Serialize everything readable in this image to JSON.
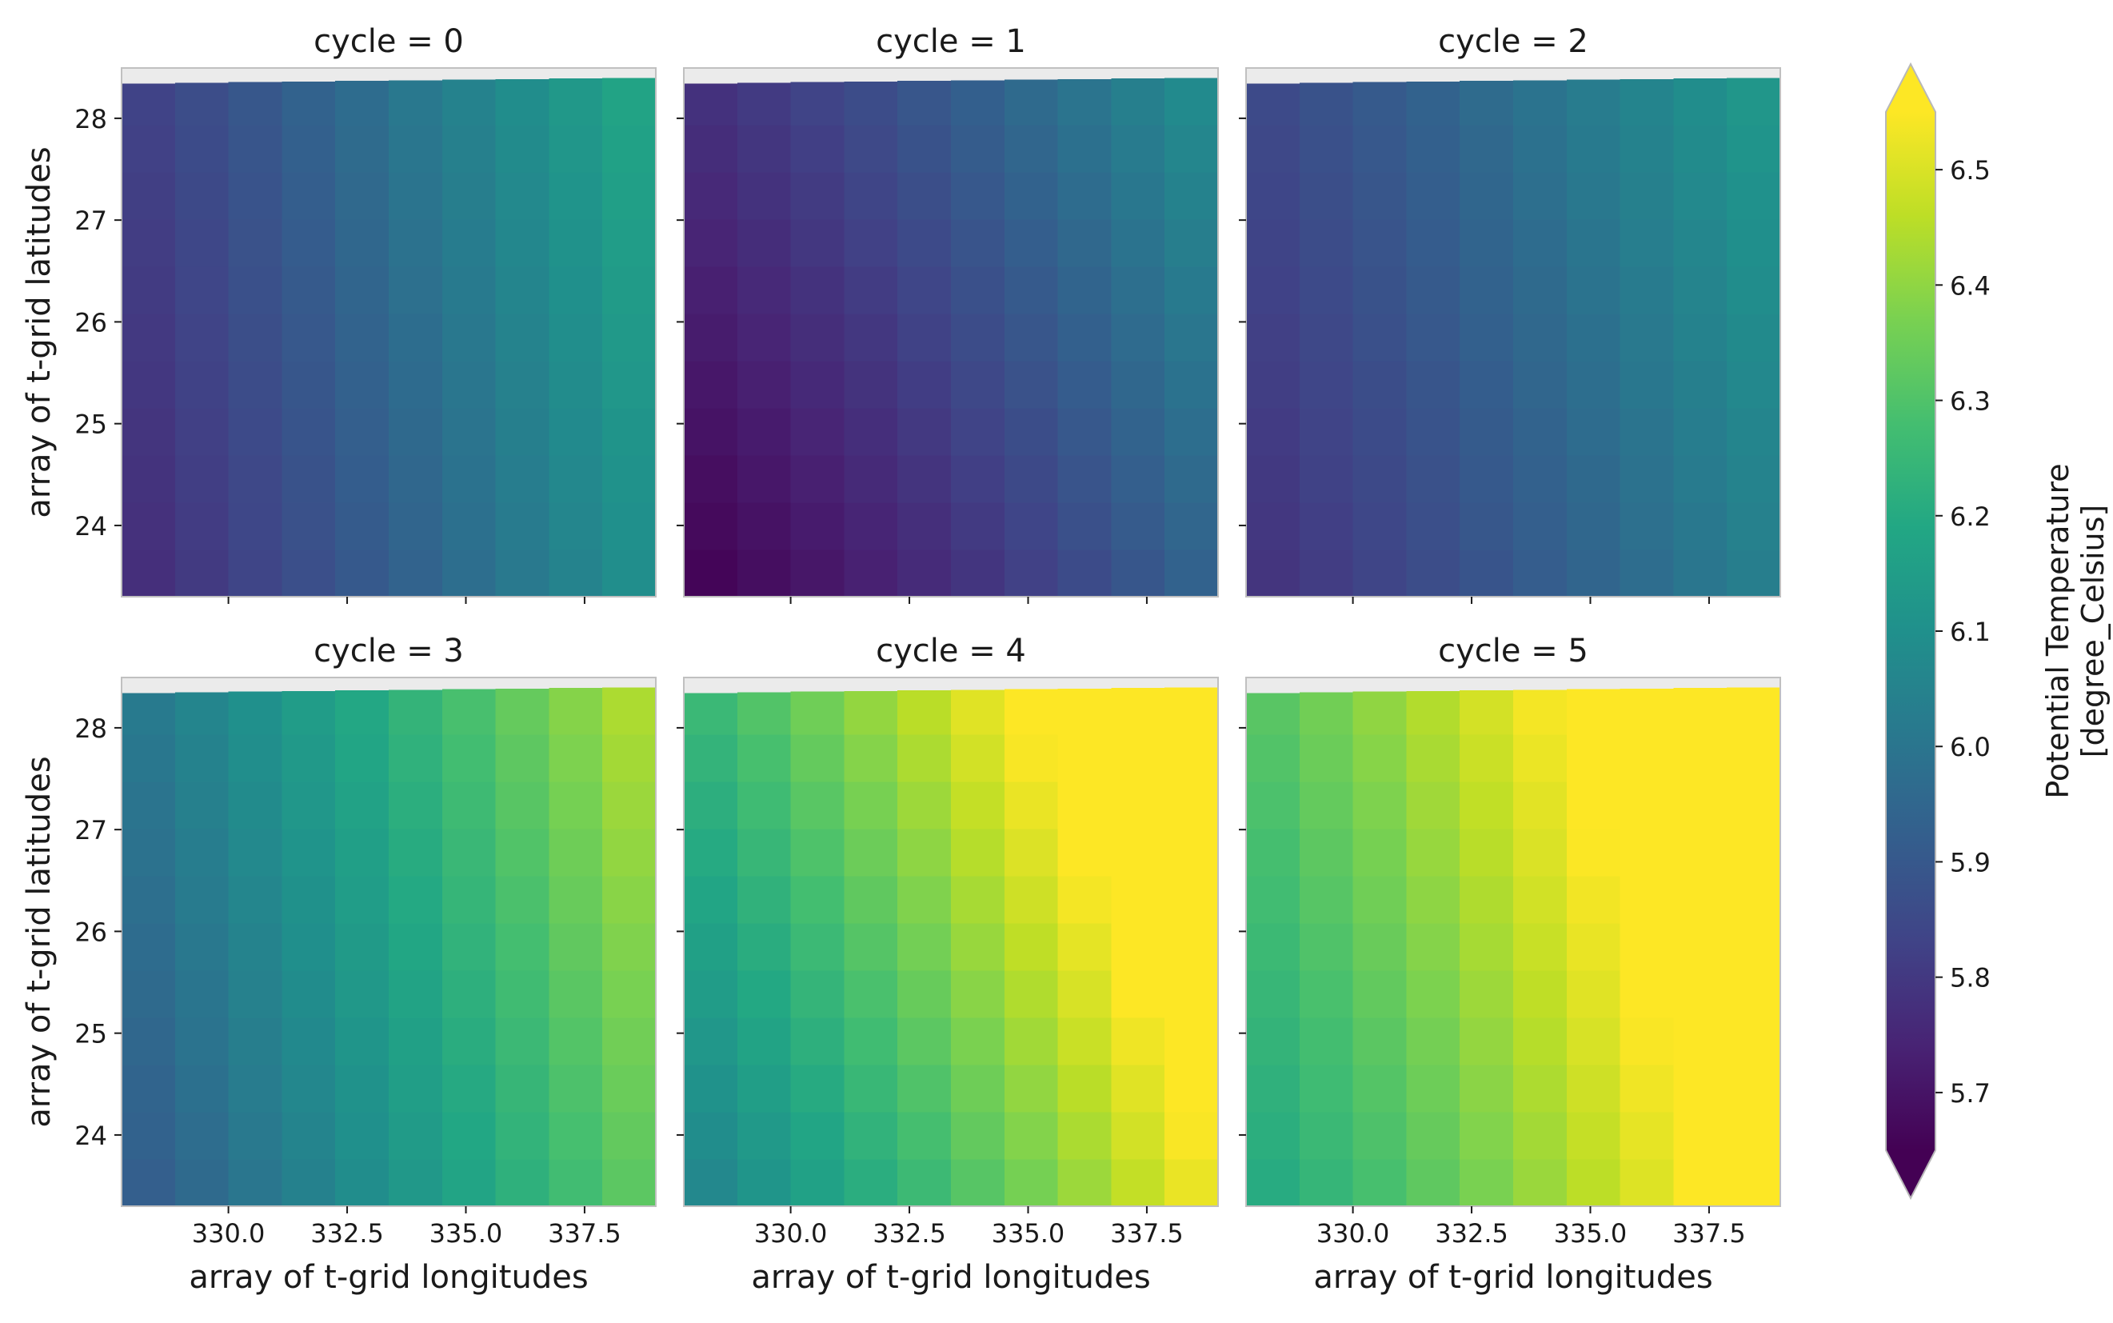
{
  "chart_data": {
    "type": "heatmap",
    "facet_variable": "cycle",
    "panels": [
      {
        "title": "cycle = 0",
        "base": 5.755,
        "gx": 0.295,
        "gy": 0.06,
        "curv": 0.06,
        "corners": {
          "bottom_left": 5.74,
          "bottom_right": 6.06,
          "top_left": 5.85,
          "top_right": 6.17
        }
      },
      {
        "title": "cycle = 1",
        "base": 5.645,
        "gx": 0.2,
        "gy": 0.13,
        "curv": 0.1,
        "corners": {
          "bottom_left": 5.65,
          "bottom_right": 5.86,
          "top_left": 5.73,
          "top_right": 5.93
        }
      },
      {
        "title": "cycle = 2",
        "base": 5.775,
        "gx": 0.22,
        "gy": 0.07,
        "curv": 0.05,
        "corners": {
          "bottom_left": 5.78,
          "bottom_right": 6.02,
          "top_left": 5.86,
          "top_right": 6.15
        }
      },
      {
        "title": "cycle = 3",
        "base": 5.9,
        "gx": 0.38,
        "gy": 0.1,
        "curv": 0.06,
        "corners": {
          "bottom_left": 5.9,
          "bottom_right": 6.23,
          "top_left": 6.05,
          "top_right": 6.33
        }
      },
      {
        "title": "cycle = 4",
        "base": 6.04,
        "gx": 0.45,
        "gy": 0.2,
        "curv": 0.05,
        "corners": {
          "bottom_left": 6.04,
          "bottom_right": 6.38,
          "top_left": 6.23,
          "top_right": 6.49
        }
      },
      {
        "title": "cycle = 5",
        "base": 6.18,
        "gx": 0.38,
        "gy": 0.12,
        "curv": 0.06,
        "corners": {
          "bottom_left": 6.18,
          "bottom_right": 6.47,
          "top_left": 6.37,
          "top_right": 6.55
        }
      }
    ],
    "grid": {
      "columns": 10,
      "rows": 11,
      "lon_range": [
        327.75,
        339.0
      ],
      "lat_range": [
        23.3,
        28.4
      ]
    },
    "x_axis": {
      "label": "array of t-grid longitudes",
      "ticks": [
        330.0,
        332.5,
        335.0,
        337.5
      ],
      "tick_labels": [
        "330.0",
        "332.5",
        "335.0",
        "337.5"
      ]
    },
    "y_axis": {
      "label": "array of t-grid latitudes",
      "ticks": [
        24,
        25,
        26,
        27,
        28
      ],
      "tick_labels": [
        "24",
        "25",
        "26",
        "27",
        "28"
      ]
    },
    "colorbar": {
      "label_line1": "Potential Temperature",
      "label_line2": "[degree_Celsius]",
      "colormap": "viridis",
      "range": [
        5.65,
        6.55
      ],
      "extend": "both",
      "ticks": [
        5.7,
        5.8,
        5.9,
        6.0,
        6.1,
        6.2,
        6.3,
        6.4,
        6.5
      ],
      "tick_labels": [
        "5.7",
        "5.8",
        "5.9",
        "6.0",
        "6.1",
        "6.2",
        "6.3",
        "6.4",
        "6.5"
      ]
    }
  }
}
